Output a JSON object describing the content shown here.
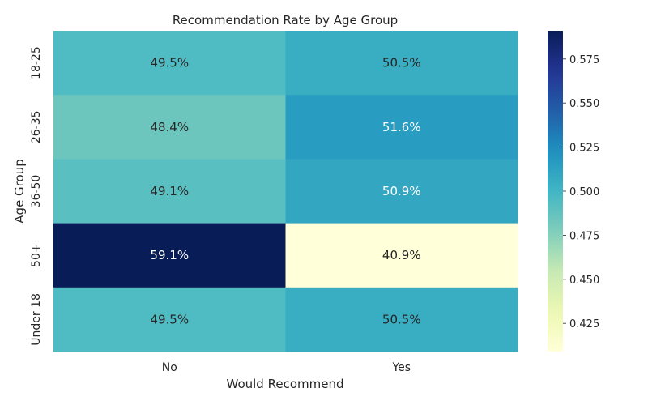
{
  "chart_data": {
    "type": "heatmap",
    "title": "Recommendation Rate by Age Group",
    "xlabel": "Would Recommend",
    "ylabel": "Age Group",
    "x_categories": [
      "No",
      "Yes"
    ],
    "y_categories": [
      "18-25",
      "26-35",
      "36-50",
      "50+",
      "Under 18"
    ],
    "values": [
      [
        0.495,
        0.505
      ],
      [
        0.484,
        0.516
      ],
      [
        0.491,
        0.509
      ],
      [
        0.591,
        0.409
      ],
      [
        0.495,
        0.505
      ]
    ],
    "annotations": [
      [
        "49.5%",
        "50.5%"
      ],
      [
        "48.4%",
        "51.6%"
      ],
      [
        "49.1%",
        "50.9%"
      ],
      [
        "59.1%",
        "40.9%"
      ],
      [
        "49.5%",
        "50.5%"
      ]
    ],
    "colormap": "YlGnBu",
    "colorbar": {
      "vmin": 0.409,
      "vmax": 0.591,
      "ticks": [
        0.425,
        0.45,
        0.475,
        0.5,
        0.525,
        0.55,
        0.575
      ],
      "tick_labels": [
        "0.425",
        "0.450",
        "0.475",
        "0.500",
        "0.525",
        "0.550",
        "0.575"
      ]
    },
    "grid": false,
    "legend": "colorbar-right"
  }
}
